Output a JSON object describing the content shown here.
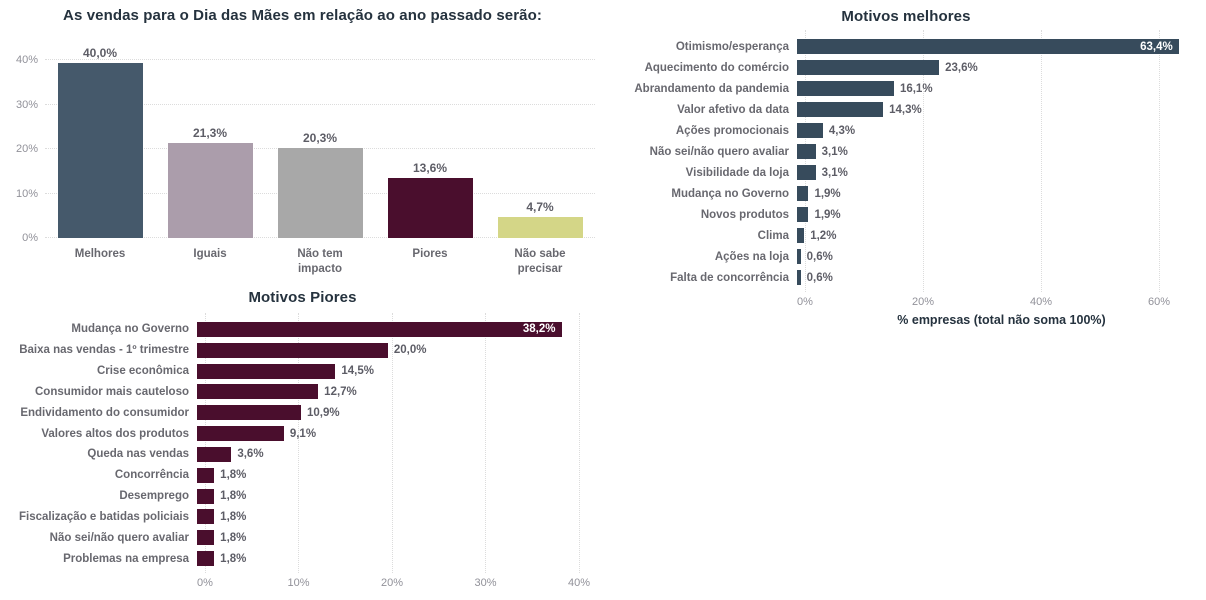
{
  "colors": {
    "background": "#ffffff",
    "title": "#25323e",
    "value_label": "#5d5d66",
    "category_label": "#68686f",
    "axis_tick": "#919199",
    "gridline": "#dcdcdc",
    "slate_dark": "#374b5c",
    "slate": "#45596b",
    "mauve": "#ab9dab",
    "gray": "#a8a8a8",
    "maroon": "#4a0e2d",
    "yellow_green": "#d4d687"
  },
  "chart_data": [
    {
      "id": "vendas",
      "type": "bar",
      "title": "As vendas para o Dia das Mães em relação ao ano passado serão:",
      "categories": [
        "Melhores",
        "Iguais",
        "Não tem impacto",
        "Piores",
        "Não sabe precisar"
      ],
      "values": [
        40.0,
        21.3,
        20.3,
        13.6,
        4.7
      ],
      "value_labels": [
        "40,0%",
        "21,3%",
        "20,3%",
        "13,6%",
        "4,7%"
      ],
      "bar_colors": [
        "#45596b",
        "#ab9dab",
        "#a8a8a8",
        "#4a0e2d",
        "#d4d687"
      ],
      "ylim": [
        0,
        43.2
      ],
      "yticks": [
        {
          "v": 0,
          "label": "0%"
        },
        {
          "v": 10,
          "label": "10%"
        },
        {
          "v": 20,
          "label": "20%"
        },
        {
          "v": 30,
          "label": "30%"
        },
        {
          "v": 40,
          "label": "40%"
        }
      ],
      "grid": true,
      "xlabel": "",
      "ylabel": ""
    },
    {
      "id": "motivos-piores",
      "type": "hbar",
      "title": "Motivos Piores",
      "categories": [
        "Mudança no Governo",
        "Baixa nas vendas - 1º trimestre",
        "Crise econômica",
        "Consumidor mais cauteloso",
        "Endividamento do consumidor",
        "Valores altos dos produtos",
        "Queda nas vendas",
        "Concorrência",
        "Desemprego",
        "Fiscalização e batidas policiais",
        "Não sei/não quero avaliar",
        "Problemas na empresa"
      ],
      "values": [
        38.2,
        20.0,
        14.5,
        12.7,
        10.9,
        9.1,
        3.6,
        1.8,
        1.8,
        1.8,
        1.8,
        1.8
      ],
      "value_labels": [
        "38,2%",
        "20,0%",
        "14,5%",
        "12,7%",
        "10,9%",
        "9,1%",
        "3,6%",
        "1,8%",
        "1,8%",
        "1,8%",
        "1,8%",
        "1,8%"
      ],
      "bar_color": "#4a0e2d",
      "xlim": [
        0,
        41.5
      ],
      "xticks": [
        {
          "v": 0,
          "label": "0%"
        },
        {
          "v": 10,
          "label": "10%"
        },
        {
          "v": 20,
          "label": "20%"
        },
        {
          "v": 30,
          "label": "30%"
        },
        {
          "v": 40,
          "label": "40%"
        }
      ],
      "inside_label_index": 0,
      "grid": true,
      "xlabel": ""
    },
    {
      "id": "motivos-melhores",
      "type": "hbar",
      "title": "Motivos melhores",
      "categories": [
        "Otimismo/esperança",
        "Aquecimento do comércio",
        "Abrandamento da pandemia",
        "Valor afetivo da data",
        "Ações promocionais",
        "Não sei/não quero avaliar",
        "Visibilidade da loja",
        "Mudança no Governo",
        "Novos produtos",
        "Clima",
        "Ações na loja",
        "Falta de concorrência"
      ],
      "values": [
        63.4,
        23.6,
        16.1,
        14.3,
        4.3,
        3.1,
        3.1,
        1.9,
        1.9,
        1.2,
        0.6,
        0.6
      ],
      "value_labels": [
        "63,4%",
        "23,6%",
        "16,1%",
        "14,3%",
        "4,3%",
        "3,1%",
        "3,1%",
        "1,9%",
        "1,9%",
        "1,2%",
        "0,6%",
        "0,6%"
      ],
      "bar_color": "#374b5c",
      "xlim": [
        0,
        66.6
      ],
      "xticks": [
        {
          "v": 0,
          "label": "0%"
        },
        {
          "v": 20,
          "label": "20%"
        },
        {
          "v": 40,
          "label": "40%"
        },
        {
          "v": 60,
          "label": "60%"
        }
      ],
      "inside_label_index": 0,
      "grid": true,
      "xlabel": "% empresas (total não soma 100%)"
    }
  ]
}
